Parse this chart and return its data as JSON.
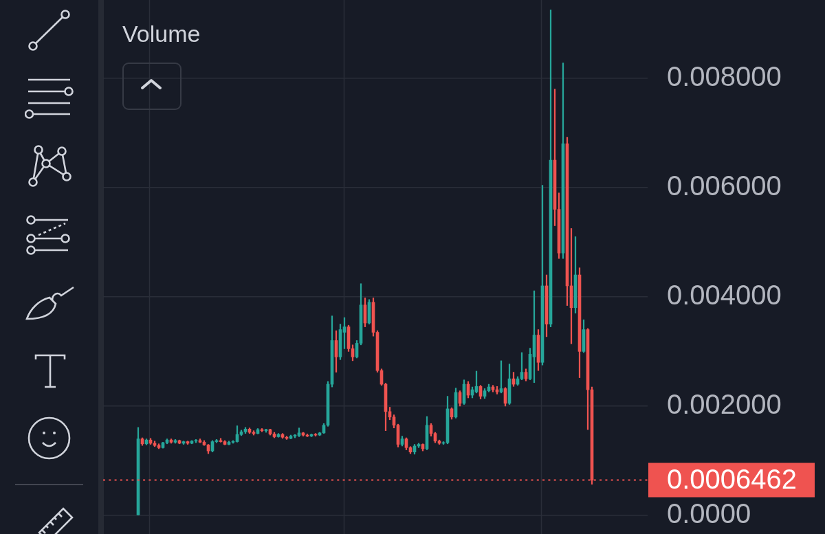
{
  "chart_data": {
    "type": "candlestick",
    "annotations": [
      "Volume"
    ],
    "categories": [
      null,
      null,
      null,
      null,
      null,
      null,
      null,
      null,
      null,
      null,
      null,
      null,
      null,
      null,
      null,
      null,
      null,
      null,
      null,
      null,
      null,
      null,
      null,
      null,
      null,
      null,
      null,
      null,
      null,
      null,
      null,
      null,
      null,
      null,
      null,
      null,
      null,
      null,
      null,
      null,
      null,
      null,
      null,
      null,
      null,
      null,
      null,
      null,
      null,
      null,
      null,
      null,
      null,
      null,
      null,
      null,
      null,
      null,
      null,
      null,
      null,
      null,
      null,
      null,
      null,
      null,
      null,
      null,
      null,
      null,
      null,
      null,
      null,
      null,
      null,
      null,
      null,
      null,
      null,
      null,
      null,
      null,
      null,
      null,
      null,
      null,
      null,
      null,
      null,
      null,
      null,
      null,
      null,
      null,
      null,
      null,
      null,
      null,
      null,
      null,
      null,
      null,
      null,
      null,
      null,
      null,
      null,
      null,
      null,
      null,
      null,
      null,
      null,
      null,
      null,
      null,
      null,
      null,
      null,
      null,
      null,
      null,
      null,
      null,
      null,
      null,
      null,
      null,
      null,
      null,
      null,
      null
    ],
    "ohlc": [
      null,
      null,
      null,
      null,
      null,
      null,
      null,
      null,
      [
        0,
        0.00161,
        0,
        0.0014
      ],
      [
        0.0014,
        0.00142,
        0.00128,
        0.00131
      ],
      [
        0.00131,
        0.0014,
        0.00129,
        0.00138
      ],
      [
        0.00138,
        0.00141,
        0.0013,
        0.00132
      ],
      [
        0.00132,
        0.00136,
        0.00126,
        0.00128
      ],
      [
        0.00128,
        0.00131,
        0.00122,
        0.00124
      ],
      [
        0.00124,
        0.00134,
        0.00123,
        0.00133
      ],
      [
        0.00133,
        0.0014,
        0.00131,
        0.00138
      ],
      [
        0.00138,
        0.0014,
        0.00132,
        0.00134
      ],
      [
        0.00134,
        0.00139,
        0.00132,
        0.00137
      ],
      [
        0.00137,
        0.00138,
        0.00131,
        0.00132
      ],
      [
        0.00132,
        0.00136,
        0.0013,
        0.00135
      ],
      [
        0.00135,
        0.00136,
        0.0013,
        0.00132
      ],
      [
        0.00132,
        0.00137,
        0.00131,
        0.00136
      ],
      [
        0.00136,
        0.00139,
        0.00133,
        0.00137
      ],
      [
        0.00137,
        0.0014,
        0.00133,
        0.00134
      ],
      [
        0.00134,
        0.00137,
        0.00128,
        0.00129
      ],
      [
        0.00129,
        0.0013,
        0.00113,
        0.00118
      ],
      [
        0.00118,
        0.00137,
        0.00116,
        0.00135
      ],
      [
        0.00135,
        0.00139,
        0.00133,
        0.00137
      ],
      [
        0.00137,
        0.00141,
        0.00134,
        0.00135
      ],
      [
        0.00135,
        0.00137,
        0.00129,
        0.0013
      ],
      [
        0.0013,
        0.00136,
        0.00129,
        0.00134
      ],
      [
        0.00134,
        0.00137,
        0.00132,
        0.00135
      ],
      [
        0.00135,
        0.00164,
        0.00134,
        0.00148
      ],
      [
        0.00148,
        0.00156,
        0.00146,
        0.00153
      ],
      [
        0.00153,
        0.00161,
        0.0015,
        0.00158
      ],
      [
        0.00158,
        0.0016,
        0.0015,
        0.00152
      ],
      [
        0.00152,
        0.00155,
        0.00147,
        0.0015
      ],
      [
        0.0015,
        0.00159,
        0.00149,
        0.00157
      ],
      [
        0.00157,
        0.00159,
        0.00153,
        0.00155
      ],
      [
        0.00155,
        0.00158,
        0.00152,
        0.00157
      ],
      [
        0.00157,
        0.00158,
        0.00147,
        0.00149
      ],
      [
        0.00149,
        0.00152,
        0.00142,
        0.00144
      ],
      [
        0.00144,
        0.0015,
        0.00143,
        0.00148
      ],
      [
        0.00148,
        0.0015,
        0.00141,
        0.00143
      ],
      [
        0.00143,
        0.00145,
        0.00139,
        0.00141
      ],
      [
        0.00141,
        0.00147,
        0.0014,
        0.00145
      ],
      [
        0.00145,
        0.00148,
        0.00142,
        0.00147
      ],
      [
        0.00146,
        0.0016,
        0.00144,
        0.00151
      ],
      [
        0.00151,
        0.00152,
        0.00145,
        0.00147
      ],
      [
        0.00147,
        0.00149,
        0.00144,
        0.00145
      ],
      [
        0.00145,
        0.00149,
        0.00144,
        0.00148
      ],
      [
        0.00148,
        0.0015,
        0.00145,
        0.00147
      ],
      [
        0.00147,
        0.00152,
        0.00146,
        0.00151
      ],
      [
        0.00151,
        0.00168,
        0.0015,
        0.00165
      ],
      [
        0.00165,
        0.00245,
        0.00163,
        0.0024
      ],
      [
        0.0024,
        0.00365,
        0.00235,
        0.0032
      ],
      [
        0.0032,
        0.00338,
        0.00262,
        0.0029
      ],
      [
        0.0029,
        0.0035,
        0.00285,
        0.0034
      ],
      [
        0.00335,
        0.00362,
        0.00305,
        0.00345
      ],
      [
        0.00345,
        0.00348,
        0.003,
        0.00305
      ],
      [
        0.00305,
        0.00312,
        0.00283,
        0.0029
      ],
      [
        0.0029,
        0.0032,
        0.00288,
        0.00315
      ],
      [
        0.00315,
        0.00424,
        0.00312,
        0.00385
      ],
      [
        0.00385,
        0.00398,
        0.00345,
        0.00352
      ],
      [
        0.00352,
        0.00395,
        0.0035,
        0.0039
      ],
      [
        0.0039,
        0.00398,
        0.00328,
        0.00335
      ],
      [
        0.00335,
        0.00338,
        0.00262,
        0.00265
      ],
      [
        0.00265,
        0.00268,
        0.00238,
        0.0024
      ],
      [
        0.0024,
        0.00242,
        0.00155,
        0.0019
      ],
      [
        0.0019,
        0.00198,
        0.00175,
        0.0018
      ],
      [
        0.0018,
        0.00184,
        0.0016,
        0.00165
      ],
      [
        0.00165,
        0.00167,
        0.00125,
        0.0013
      ],
      [
        0.0013,
        0.00145,
        0.00127,
        0.0014
      ],
      [
        0.0014,
        0.00142,
        0.0012,
        0.00124
      ],
      [
        0.00124,
        0.00126,
        0.00113,
        0.00116
      ],
      [
        0.00116,
        0.0013,
        0.00112,
        0.00127
      ],
      [
        0.00127,
        0.00132,
        0.00124,
        0.0013
      ],
      [
        0.0013,
        0.00131,
        0.00118,
        0.00122
      ],
      [
        0.00122,
        0.00181,
        0.0012,
        0.00165
      ],
      [
        0.00165,
        0.00168,
        0.00145,
        0.0015
      ],
      [
        0.0015,
        0.00152,
        0.00133,
        0.00136
      ],
      [
        0.00136,
        0.00138,
        0.0013,
        0.00132
      ],
      [
        0.00132,
        0.00135,
        0.0013,
        0.00133
      ],
      [
        0.00133,
        0.00218,
        0.00131,
        0.00195
      ],
      [
        0.00195,
        0.00197,
        0.00176,
        0.0018
      ],
      [
        0.0018,
        0.00233,
        0.00178,
        0.00225
      ],
      [
        0.00225,
        0.00228,
        0.002,
        0.00205
      ],
      [
        0.00205,
        0.00248,
        0.00203,
        0.0024
      ],
      [
        0.0024,
        0.00245,
        0.00215,
        0.0022
      ],
      [
        0.0022,
        0.00235,
        0.00215,
        0.0023
      ],
      [
        0.00226,
        0.00264,
        0.00224,
        0.00236
      ],
      [
        0.00236,
        0.00238,
        0.00213,
        0.00218
      ],
      [
        0.00218,
        0.00232,
        0.00214,
        0.00228
      ],
      [
        0.00228,
        0.0024,
        0.00226,
        0.00235
      ],
      [
        0.00235,
        0.00238,
        0.00226,
        0.0023
      ],
      [
        0.0023,
        0.00236,
        0.00222,
        0.00226
      ],
      [
        0.00226,
        0.00283,
        0.00224,
        0.00232
      ],
      [
        0.00232,
        0.00234,
        0.002,
        0.00205
      ],
      [
        0.00205,
        0.00277,
        0.00203,
        0.0025
      ],
      [
        0.0025,
        0.00262,
        0.00236,
        0.0024
      ],
      [
        0.0024,
        0.00254,
        0.00238,
        0.0025
      ],
      [
        0.0025,
        0.00298,
        0.00248,
        0.00262
      ],
      [
        0.00262,
        0.00268,
        0.00246,
        0.0025
      ],
      [
        0.0025,
        0.00306,
        0.00248,
        0.00295
      ],
      [
        0.0029,
        0.00411,
        0.00243,
        0.0033
      ],
      [
        0.0033,
        0.0034,
        0.00265,
        0.0028
      ],
      [
        0.0028,
        0.00604,
        0.00275,
        0.0042
      ],
      [
        0.0042,
        0.0044,
        0.00327,
        0.0035
      ],
      [
        0.0035,
        0.00925,
        0.00345,
        0.0065
      ],
      [
        0.0065,
        0.0078,
        0.0053,
        0.0056
      ],
      [
        0.0056,
        0.0059,
        0.0047,
        0.0048
      ],
      [
        0.0048,
        0.00828,
        0.0047,
        0.0068
      ],
      [
        0.0068,
        0.00692,
        0.00384,
        0.0042
      ],
      [
        0.0042,
        0.00525,
        0.00314,
        0.0038
      ],
      [
        0.0038,
        0.0051,
        0.0037,
        0.0044
      ],
      [
        0.0044,
        0.00453,
        0.00252,
        0.003
      ],
      [
        0.003,
        0.00358,
        0.00298,
        0.0034
      ],
      [
        0.0034,
        0.00342,
        0.00157,
        0.0023
      ],
      [
        0.0023,
        0.00235,
        0.00057,
        0.0006462
      ],
      null,
      null,
      null,
      null,
      null,
      null,
      null,
      null,
      null,
      null,
      null,
      null,
      null
    ],
    "colors": [
      null,
      null,
      null,
      null,
      null,
      null,
      null,
      null,
      "#26a69a",
      "#ef5350",
      "#26a69a",
      "#ef5350",
      "#ef5350",
      "#ef5350",
      "#26a69a",
      "#26a69a",
      "#ef5350",
      "#26a69a",
      "#ef5350",
      "#26a69a",
      "#ef5350",
      "#26a69a",
      "#26a69a",
      "#ef5350",
      "#ef5350",
      "#ef5350",
      "#26a69a",
      "#26a69a",
      "#ef5350",
      "#ef5350",
      "#26a69a",
      "#26a69a",
      "#26a69a",
      "#26a69a",
      "#26a69a",
      "#ef5350",
      "#ef5350",
      "#26a69a",
      "#ef5350",
      "#26a69a",
      "#ef5350",
      "#ef5350",
      "#26a69a",
      "#ef5350",
      "#ef5350",
      "#26a69a",
      "#26a69a",
      "#26a69a",
      "#ef5350",
      "#ef5350",
      "#26a69a",
      "#ef5350",
      "#26a69a",
      "#26a69a",
      "#26a69a",
      "#26a69a",
      "#ef5350",
      "#26a69a",
      "#26a69a",
      "#ef5350",
      "#ef5350",
      "#26a69a",
      "#26a69a",
      "#ef5350",
      "#26a69a",
      "#ef5350",
      "#ef5350",
      "#ef5350",
      "#ef5350",
      "#ef5350",
      "#ef5350",
      "#ef5350",
      "#26a69a",
      "#ef5350",
      "#ef5350",
      "#26a69a",
      "#26a69a",
      "#ef5350",
      "#26a69a",
      "#ef5350",
      "#ef5350",
      "#ef5350",
      "#26a69a",
      "#26a69a",
      "#ef5350",
      "#26a69a",
      "#ef5350",
      "#26a69a",
      "#ef5350",
      "#26a69a",
      "#26a69a",
      "#ef5350",
      "#26a69a",
      "#26a69a",
      "#ef5350",
      "#ef5350",
      "#26a69a",
      "#ef5350",
      "#26a69a",
      "#ef5350",
      "#26a69a",
      "#26a69a",
      "#ef5350",
      "#26a69a",
      "#26a69a",
      "#ef5350",
      "#26a69a",
      "#ef5350",
      "#26a69a",
      "#ef5350",
      "#ef5350",
      "#26a69a",
      "#ef5350",
      "#ef5350",
      "#26a69a",
      "#ef5350",
      "#26a69a",
      "#ef5350",
      "#ef5350",
      null,
      null,
      null,
      null,
      null,
      null,
      null,
      null,
      null,
      null,
      null,
      null,
      null
    ],
    "ylim": [
      -0.00034,
      0.00943
    ],
    "yticks": [
      {
        "value": 0,
        "label": "0.0000"
      },
      {
        "value": 0.002,
        "label": "0.002000"
      },
      {
        "value": 0.004,
        "label": "0.004000"
      },
      {
        "value": 0.006,
        "label": "0.006000"
      },
      {
        "value": 0.008,
        "label": "0.008000"
      }
    ],
    "ref_lines": [
      {
        "axis": "y",
        "value": 0.0006462,
        "label": "0.0006462",
        "color": "#ef5350",
        "line_style": "dotted"
      }
    ],
    "grid": true,
    "tick_labels": "y"
  }
}
